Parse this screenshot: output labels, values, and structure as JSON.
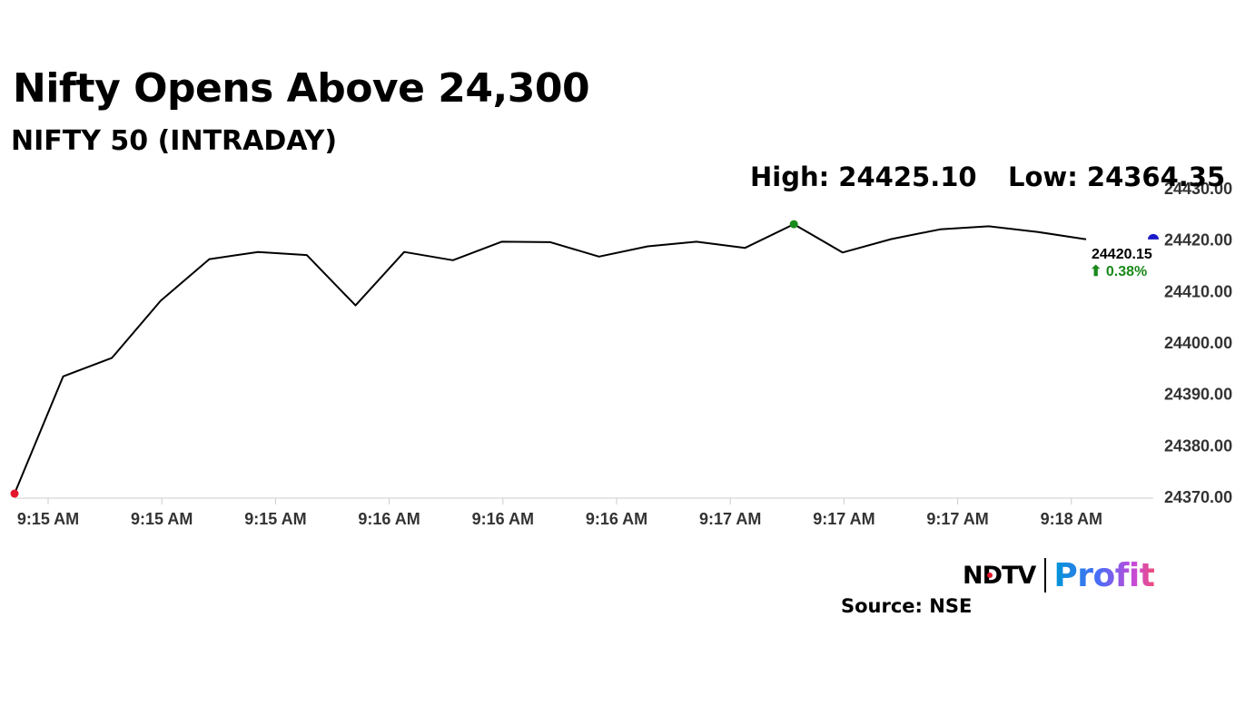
{
  "header": {
    "title": "Nifty Opens Above 24,300",
    "subtitle": "NIFTY 50 (INTRADAY)"
  },
  "stats": {
    "high": "High: 24425.10",
    "low": "Low: 24364.35"
  },
  "last": {
    "value": "24420.15",
    "change": "⬆ 0.38%"
  },
  "branding": {
    "ndtv": "NDTV",
    "profit": "Profit",
    "source": "Source: NSE"
  },
  "colors": {
    "line": "#000000",
    "start_marker": "#e3172b",
    "high_marker": "#1a8a1a",
    "last_marker": "#1a1ac8",
    "change_positive": "#1a8a1a",
    "axis": "#cccccc"
  },
  "chart_data": {
    "type": "line",
    "title": "NIFTY 50 (INTRADAY)",
    "x_tick_labels": [
      "9:15 AM",
      "9:15 AM",
      "9:15 AM",
      "9:16 AM",
      "9:16 AM",
      "9:16 AM",
      "9:17 AM",
      "9:17 AM",
      "9:17 AM",
      "9:18 AM"
    ],
    "y_tick_labels": [
      "24430.00",
      "24420.00",
      "24410.00",
      "24400.00",
      "24390.00",
      "24380.00",
      "24370.00"
    ],
    "ylim": [
      24370,
      24430
    ],
    "grid": false,
    "series": [
      {
        "values": [
          24370.7,
          24393.5,
          24397.1,
          24408.2,
          24416.3,
          24417.7,
          24417.1,
          24407.3,
          24417.7,
          24416.1,
          24419.7,
          24419.6,
          24416.8,
          24418.8,
          24419.7,
          24418.5,
          24423.1,
          24417.6,
          24420.2,
          24422.1,
          24422.7,
          24421.6,
          24420.15
        ]
      }
    ],
    "markers": {
      "start": 24370.7,
      "high": 24425.1,
      "low": 24364.35,
      "last": 24420.15
    }
  }
}
